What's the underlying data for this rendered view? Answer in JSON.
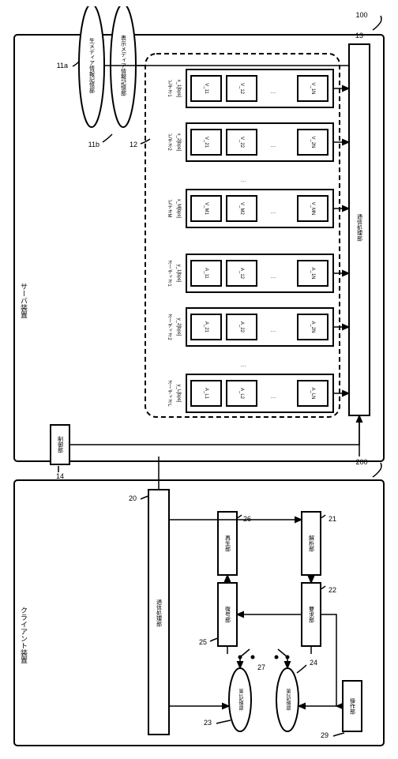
{
  "server": {
    "title": "サーバ装置",
    "ref": "100",
    "storage_a": {
      "label": "生メディア情報記憶部",
      "ref": "11a"
    },
    "storage_b": {
      "label": "表示メディア情報記憶部",
      "ref": "11b"
    },
    "group_ref": "12",
    "bus": {
      "label": "通信処理部",
      "ref": "13"
    },
    "controller": {
      "label": "制御部",
      "ref": "14"
    },
    "columns": [
      {
        "header": "ビデオ1",
        "rate": "x_1[bps]",
        "cells": [
          "V_11",
          "V_12",
          "…",
          "V_1N"
        ]
      },
      {
        "header": "ビデオ2",
        "rate": "x_2[bps]",
        "cells": [
          "V_21",
          "V_22",
          "…",
          "V_2N"
        ]
      },
      {
        "header": "ビデオM",
        "rate": "x_M[bps]",
        "cells": [
          "V_M1",
          "V_M2",
          "…",
          "V_MN"
        ],
        "dots_before": true
      },
      {
        "header": "オーディオ1",
        "rate": "y_1[bps]",
        "cells": [
          "A_11",
          "A_12",
          "…",
          "A_1N"
        ]
      },
      {
        "header": "オーディオ2",
        "rate": "y_2[bps]",
        "cells": [
          "A_21",
          "A_22",
          "…",
          "A_2N"
        ]
      },
      {
        "header": "オーディオL",
        "rate": "y_L[bps]",
        "cells": [
          "A_L1",
          "A_L2",
          "…",
          "A_LN"
        ],
        "dots_before": true
      }
    ]
  },
  "client": {
    "title": "クライアント装置",
    "ref": "200",
    "bus": {
      "label": "通信処理部",
      "ref": "20"
    },
    "blocks": {
      "b21": {
        "label": "解析部",
        "ref": "21"
      },
      "b22": {
        "label": "要求部",
        "ref": "22"
      },
      "b25": {
        "label": "復号部",
        "ref": "25"
      },
      "b26": {
        "label": "再生部",
        "ref": "26"
      },
      "b29": {
        "label": "操作部",
        "ref": "29"
      },
      "b23": {
        "label": "第1記憶部",
        "ref": "23"
      },
      "b24": {
        "label": "第2記憶部",
        "ref": "24"
      },
      "sw": {
        "ref": "27"
      }
    }
  }
}
